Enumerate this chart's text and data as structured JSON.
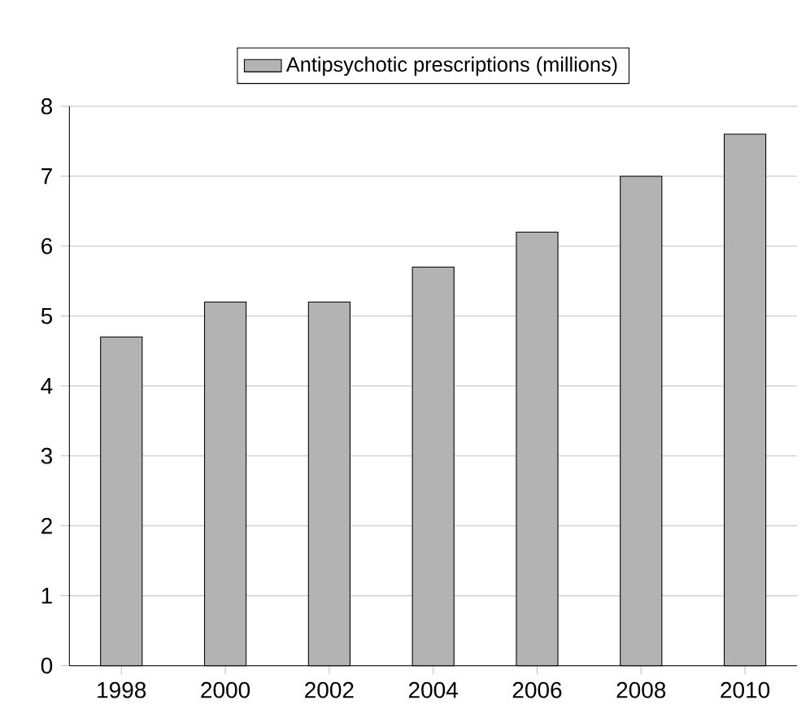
{
  "chart_data": {
    "type": "bar",
    "categories": [
      "1998",
      "2000",
      "2002",
      "2004",
      "2006",
      "2008",
      "2010"
    ],
    "series": [
      {
        "name": "Antipsychotic prescriptions (millions)",
        "color": "#b3b3b3",
        "values": [
          4.7,
          5.2,
          5.2,
          5.7,
          6.2,
          7.0,
          7.6
        ]
      }
    ],
    "ylim": [
      0,
      8
    ],
    "yticks": [
      0,
      1,
      2,
      3,
      4,
      5,
      6,
      7,
      8
    ],
    "grid": "y",
    "legend": "top"
  }
}
